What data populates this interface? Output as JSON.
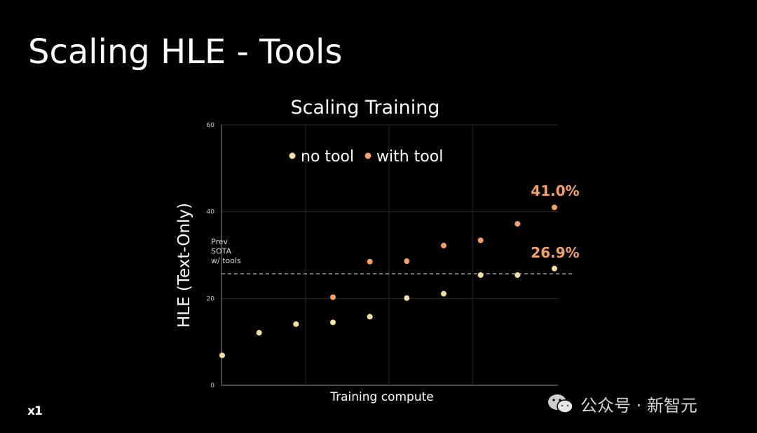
{
  "slide": {
    "title": "Scaling HLE - Tools",
    "logo": "x1",
    "watermark": "公众号 · 新智元",
    "watermark_icon": "wechat-icon"
  },
  "chart_data": {
    "type": "scatter",
    "title": "Scaling Training",
    "xlabel": "Training compute",
    "ylabel": "HLE (Text-Only)",
    "ylim": [
      0,
      60
    ],
    "yticks": [
      0,
      20,
      40,
      60
    ],
    "grid": true,
    "legend_position": "top-left",
    "x": [
      1,
      2,
      3,
      4,
      5,
      6,
      7,
      8,
      9,
      10
    ],
    "series": [
      {
        "name": "no tool",
        "color": "#f6dfa5",
        "points": [
          [
            1,
            6.9
          ],
          [
            2,
            12.1
          ],
          [
            3,
            14.1
          ],
          [
            4,
            14.5
          ],
          [
            5,
            15.8
          ],
          [
            6,
            20.1
          ],
          [
            7,
            21.1
          ],
          [
            8,
            25.4
          ],
          [
            9,
            25.4
          ],
          [
            10,
            26.9
          ]
        ]
      },
      {
        "name": "with tool",
        "color": "#f4a06a",
        "points": [
          [
            4,
            20.3
          ],
          [
            5,
            28.5
          ],
          [
            6,
            28.6
          ],
          [
            7,
            32.2
          ],
          [
            8,
            33.4
          ],
          [
            9,
            37.2
          ],
          [
            10,
            41.0
          ]
        ]
      }
    ],
    "reference_line": {
      "label": "Prev\nSOTA\nw/ tools",
      "value": 25.7
    },
    "annotations": [
      {
        "text": "41.0%",
        "x": 10,
        "y": 41.0
      },
      {
        "text": "26.9%",
        "x": 10,
        "y": 26.9
      }
    ]
  }
}
